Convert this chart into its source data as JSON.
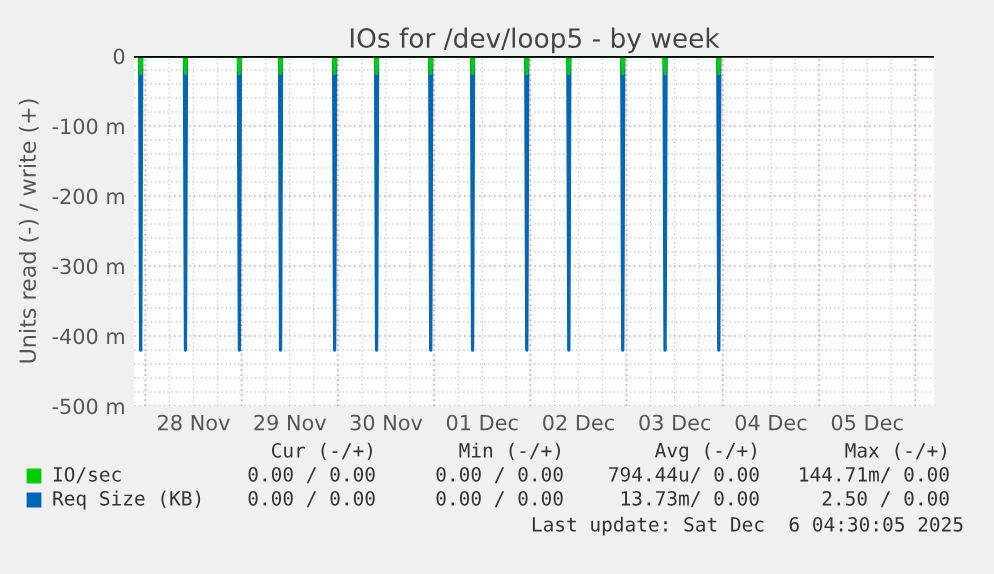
{
  "chart_data": {
    "type": "line",
    "title": "IOs for /dev/loop5 - by week",
    "ylabel": "Units read (-) / write (+)",
    "xlim": [
      "2025-11-27T21:10",
      "2025-12-06T04:40"
    ],
    "xticks": [
      {
        "value": "2025-11-28T12:00",
        "label": "28 Nov"
      },
      {
        "value": "2025-11-29T12:00",
        "label": "29 Nov"
      },
      {
        "value": "2025-11-30T12:00",
        "label": "30 Nov"
      },
      {
        "value": "2025-12-01T12:00",
        "label": "01 Dec"
      },
      {
        "value": "2025-12-02T12:00",
        "label": "02 Dec"
      },
      {
        "value": "2025-12-03T12:00",
        "label": "03 Dec"
      },
      {
        "value": "2025-12-04T12:00",
        "label": "04 Dec"
      },
      {
        "value": "2025-12-05T12:00",
        "label": "05 Dec"
      }
    ],
    "ylim": [
      -500,
      0
    ],
    "yticks": [
      0,
      {
        "value": -100,
        "label": "-100 m"
      },
      {
        "value": -200,
        "label": "-200 m"
      },
      {
        "value": -300,
        "label": "-300 m"
      },
      {
        "value": -400,
        "label": "-400 m"
      },
      {
        "value": -500,
        "label": "-500 m"
      }
    ],
    "x": [
      "2025-11-27T22:35",
      "2025-11-27T22:50",
      "2025-11-27T23:05",
      "2025-11-28T09:45",
      "2025-11-28T10:00",
      "2025-11-28T10:15",
      "2025-11-28T23:12",
      "2025-11-28T23:27",
      "2025-11-28T23:42",
      "2025-11-29T09:28",
      "2025-11-29T09:43",
      "2025-11-29T09:58",
      "2025-11-29T22:57",
      "2025-11-29T23:12",
      "2025-11-29T23:27",
      "2025-11-30T09:25",
      "2025-11-30T09:40",
      "2025-11-30T09:55",
      "2025-11-30T22:55",
      "2025-11-30T23:10",
      "2025-11-30T23:25",
      "2025-12-01T09:21",
      "2025-12-01T09:36",
      "2025-12-01T09:51",
      "2025-12-01T22:52",
      "2025-12-01T23:07",
      "2025-12-01T23:22",
      "2025-12-02T09:21",
      "2025-12-02T09:36",
      "2025-12-02T09:51",
      "2025-12-02T22:48",
      "2025-12-02T23:03",
      "2025-12-02T23:18",
      "2025-12-03T09:21",
      "2025-12-03T09:36",
      "2025-12-03T09:51",
      "2025-12-03T22:45",
      "2025-12-03T23:00",
      "2025-12-03T23:15"
    ],
    "series": [
      {
        "name": "IO/sec",
        "color": "#00cc00",
        "values": [
          0,
          -25,
          0,
          0,
          -25,
          0,
          0,
          -25,
          0,
          0,
          -25,
          0,
          0,
          -25,
          0,
          0,
          -25,
          0,
          0,
          -25,
          0,
          0,
          -25,
          0,
          0,
          -25,
          0,
          0,
          -25,
          0,
          0,
          -25,
          0,
          0,
          -25,
          0,
          0,
          -25,
          0
        ]
      },
      {
        "name": "Req Size (KB)",
        "color": "#0066b3",
        "values": [
          0,
          -420,
          0,
          0,
          -420,
          0,
          0,
          -420,
          0,
          0,
          -420,
          0,
          0,
          -420,
          0,
          0,
          -420,
          0,
          0,
          -420,
          0,
          0,
          -420,
          0,
          0,
          -420,
          0,
          0,
          -420,
          0,
          0,
          -420,
          0,
          0,
          -420,
          0,
          0,
          -420,
          0
        ]
      }
    ],
    "grid": true,
    "legend": "bottom",
    "marker": "none",
    "annotations": [
      "Cur (-/+)",
      "Min (-/+)",
      "Avg (-/+)",
      "Max (-/+)",
      "0.00 / 0.00",
      "0.00 / 0.00",
      "794.44u/ 0.00",
      "144.71m/ 0.00",
      "0.00 / 0.00",
      "0.00 / 0.00",
      "13.73m/ 0.00",
      "2.50 / 0.00",
      "Last update: Sat Dec  6 04:30:05 2025"
    ]
  }
}
